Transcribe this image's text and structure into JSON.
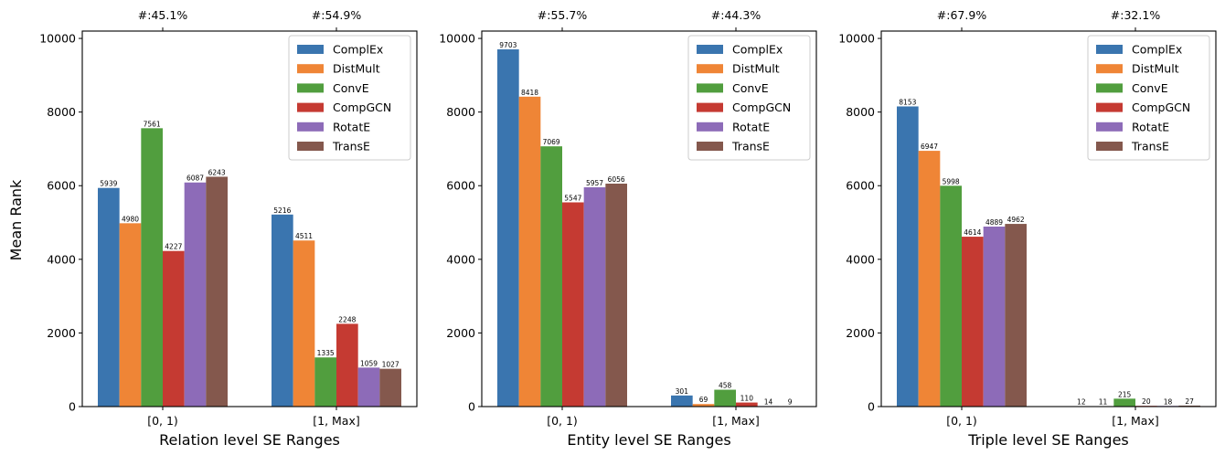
{
  "ylabel": "Mean Rank",
  "legend": {
    "labels": [
      "ComplEx",
      "DistMult",
      "ConvE",
      "CompGCN",
      "RotatE",
      "TransE"
    ],
    "placement": "top-right"
  },
  "colors": {
    "ComplEx": "#3a75af",
    "DistMult": "#ef8536",
    "ConvE": "#519e3e",
    "CompGCN": "#c53a32",
    "RotatE": "#8d6bb8",
    "TransE": "#84584d"
  },
  "chart_data": [
    {
      "type": "bar",
      "xlabel": "Relation level SE Ranges",
      "ylabel": "Mean Rank",
      "ylim": [
        0,
        10200
      ],
      "yticks": [
        0,
        2000,
        4000,
        6000,
        8000,
        10000
      ],
      "categories": [
        "[0, 1)",
        "[1, Max]"
      ],
      "top_annotations": [
        "#:45.1%",
        "#:54.9%"
      ],
      "series": [
        {
          "name": "ComplEx",
          "values": [
            5939,
            5216
          ]
        },
        {
          "name": "DistMult",
          "values": [
            4980,
            4511
          ]
        },
        {
          "name": "ConvE",
          "values": [
            7561,
            1335
          ]
        },
        {
          "name": "CompGCN",
          "values": [
            4227,
            2248
          ]
        },
        {
          "name": "RotatE",
          "values": [
            6087,
            1059
          ]
        },
        {
          "name": "TransE",
          "values": [
            6243,
            1027
          ]
        }
      ]
    },
    {
      "type": "bar",
      "xlabel": "Entity level SE Ranges",
      "ylabel": "",
      "ylim": [
        0,
        10200
      ],
      "yticks": [
        0,
        2000,
        4000,
        6000,
        8000,
        10000
      ],
      "categories": [
        "[0, 1)",
        "[1, Max]"
      ],
      "top_annotations": [
        "#:55.7%",
        "#:44.3%"
      ],
      "series": [
        {
          "name": "ComplEx",
          "values": [
            9703,
            301
          ]
        },
        {
          "name": "DistMult",
          "values": [
            8418,
            69
          ]
        },
        {
          "name": "ConvE",
          "values": [
            7069,
            458
          ]
        },
        {
          "name": "CompGCN",
          "values": [
            5547,
            110
          ]
        },
        {
          "name": "RotatE",
          "values": [
            5957,
            14
          ]
        },
        {
          "name": "TransE",
          "values": [
            6056,
            9
          ]
        }
      ]
    },
    {
      "type": "bar",
      "xlabel": "Triple level SE Ranges",
      "ylabel": "",
      "ylim": [
        0,
        10200
      ],
      "yticks": [
        0,
        2000,
        4000,
        6000,
        8000,
        10000
      ],
      "categories": [
        "[0, 1)",
        "[1, Max]"
      ],
      "top_annotations": [
        "#:67.9%",
        "#:32.1%"
      ],
      "series": [
        {
          "name": "ComplEx",
          "values": [
            8153,
            12
          ]
        },
        {
          "name": "DistMult",
          "values": [
            6947,
            11
          ]
        },
        {
          "name": "ConvE",
          "values": [
            5998,
            215
          ]
        },
        {
          "name": "CompGCN",
          "values": [
            4614,
            20
          ]
        },
        {
          "name": "RotatE",
          "values": [
            4889,
            18
          ]
        },
        {
          "name": "TransE",
          "values": [
            4962,
            27
          ]
        }
      ]
    }
  ]
}
